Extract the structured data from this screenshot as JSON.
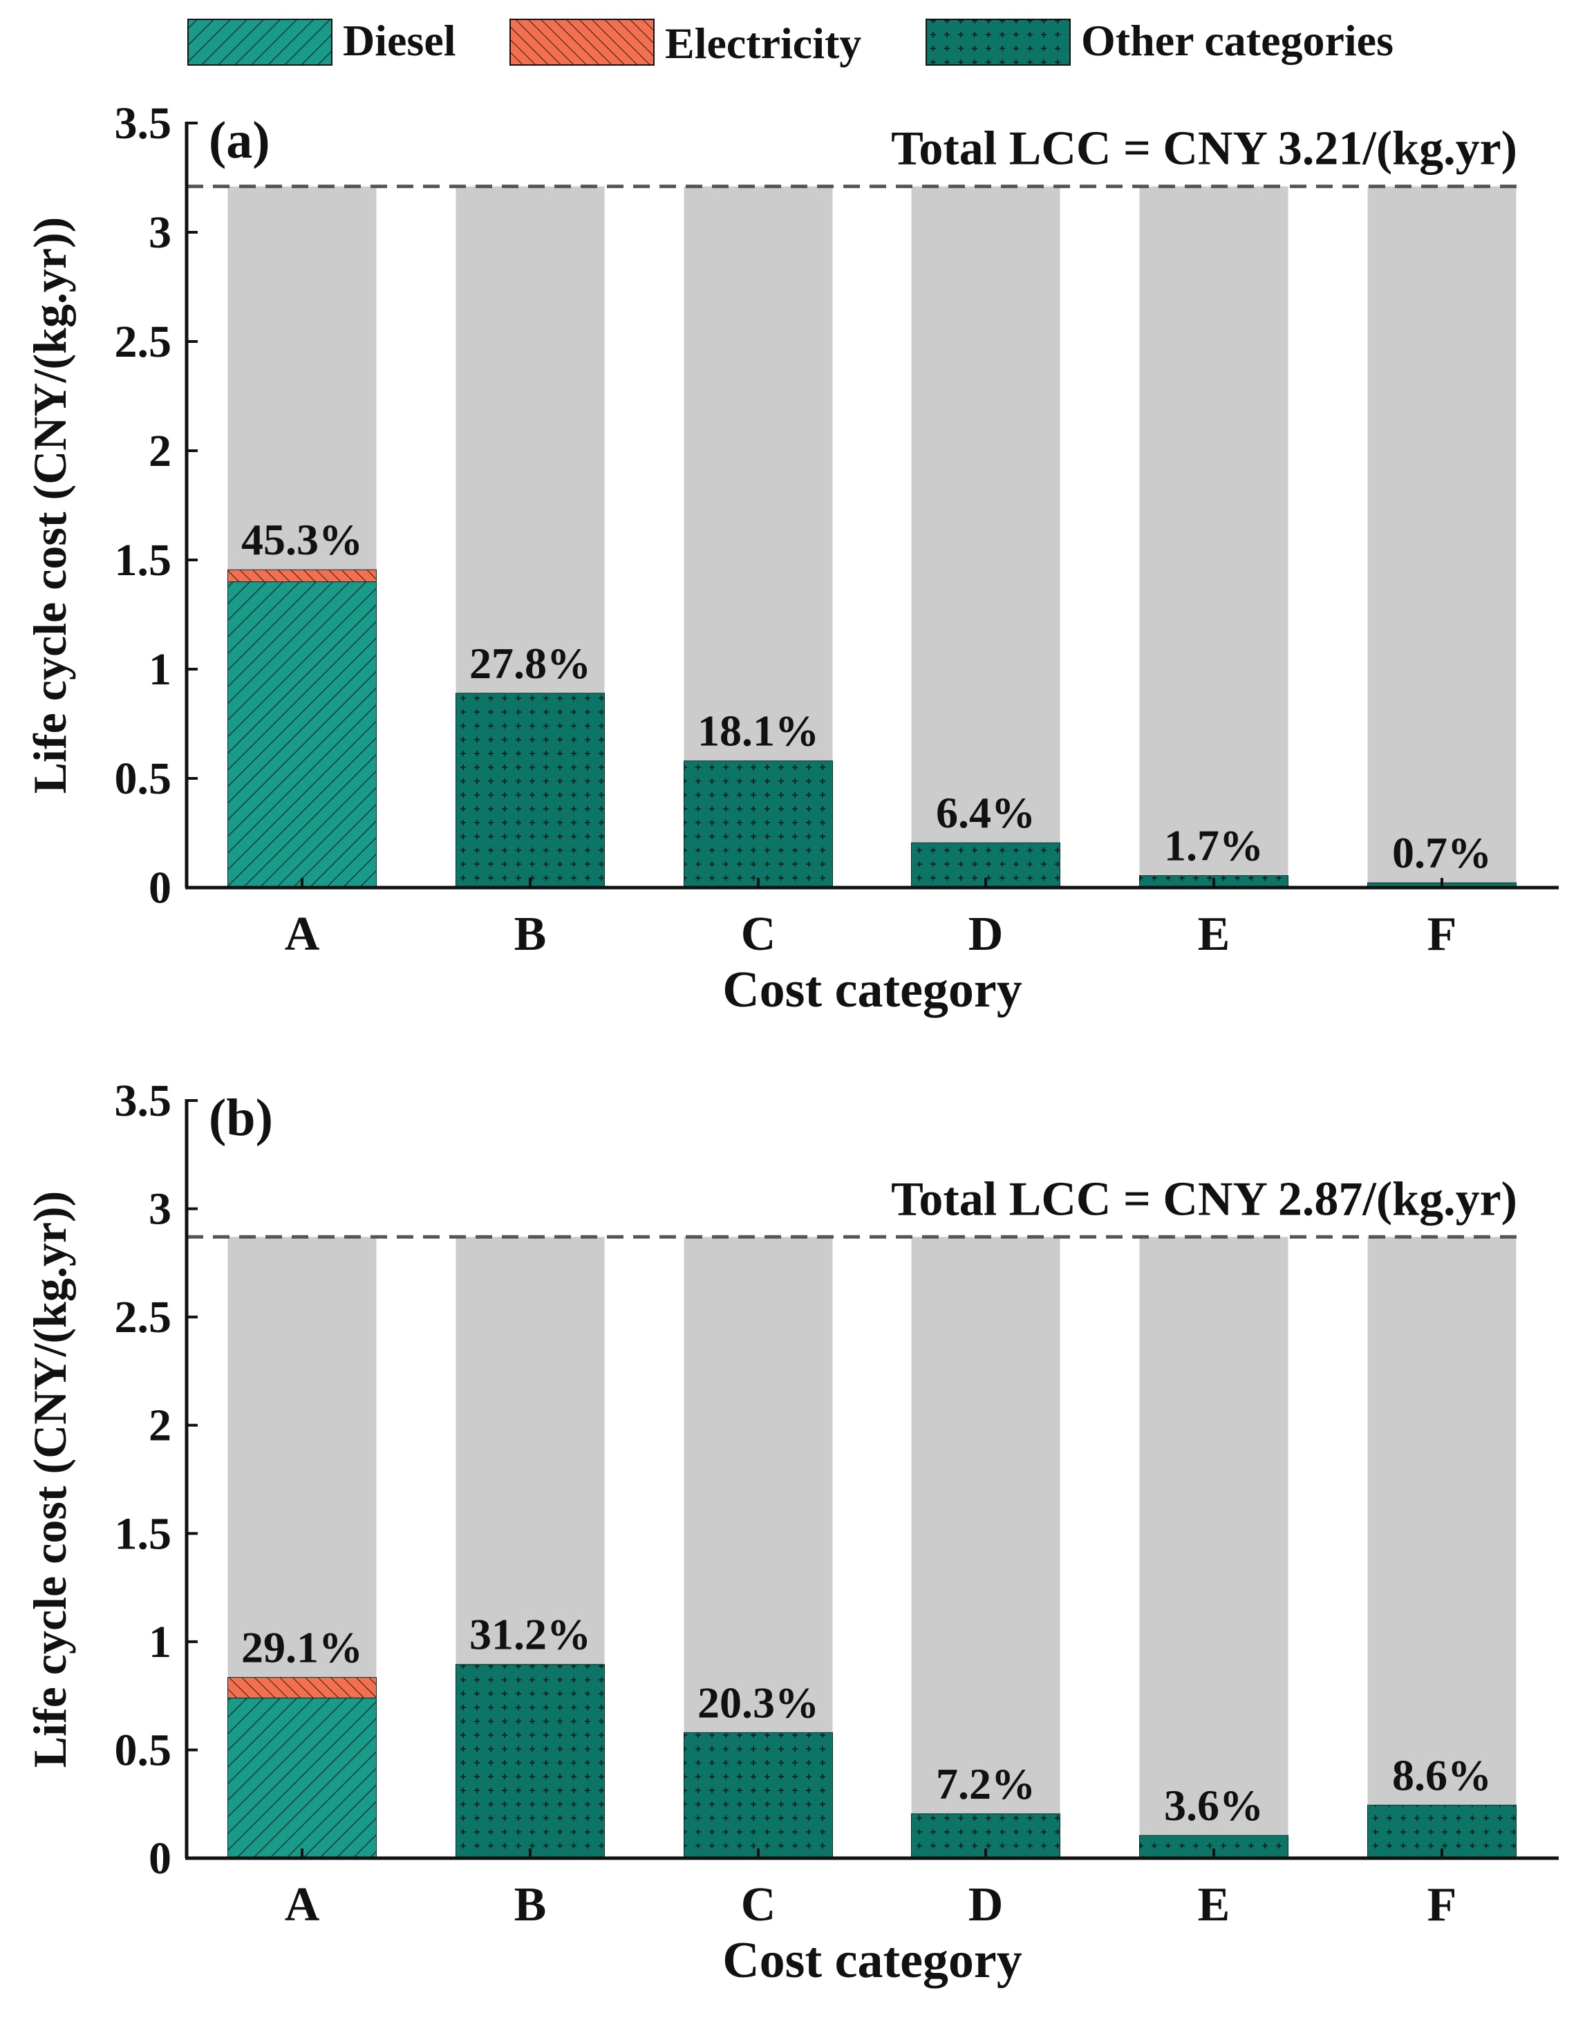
{
  "legend": {
    "items": [
      {
        "name": "Diesel",
        "color": "#1a9a88",
        "pattern": "diesel-hatch"
      },
      {
        "name": "Electricity",
        "color": "#f2704f",
        "pattern": "elec-hatch"
      },
      {
        "name": "Other categories",
        "color": "#0d7468",
        "pattern": "plus-dots"
      }
    ]
  },
  "colors": {
    "background_bar": "#cccccc",
    "diesel": "#1a9a88",
    "electricity": "#f2704f",
    "other": "#0d7468",
    "dashed_line": "#555555"
  },
  "chart_data": [
    {
      "type": "bar",
      "panel_label": "(a)",
      "total_label": "Total LCC = CNY 3.21/(kg.yr)",
      "total": 3.21,
      "xlabel": "Cost category",
      "ylabel": "Life cycle cost (CNY/(kg.yr))",
      "ylim": [
        0,
        3.5
      ],
      "yticks": [
        0,
        0.5,
        1,
        1.5,
        2,
        2.5,
        3,
        3.5
      ],
      "ytick_labels": [
        "0",
        "0.5",
        "1",
        "1.5",
        "2",
        "2.5",
        "3",
        "3.5"
      ],
      "categories": [
        "A",
        "B",
        "C",
        "D",
        "E",
        "F"
      ],
      "series": [
        {
          "name": "Diesel",
          "values": [
            1.4,
            0,
            0,
            0,
            0,
            0
          ]
        },
        {
          "name": "Electricity",
          "values": [
            0.055,
            0,
            0,
            0,
            0,
            0
          ]
        },
        {
          "name": "Other categories",
          "values": [
            0,
            0.89,
            0.58,
            0.205,
            0.055,
            0.022
          ]
        }
      ],
      "percent_labels": [
        "45.3%",
        "27.8%",
        "18.1%",
        "6.4%",
        "1.7%",
        "0.7%"
      ]
    },
    {
      "type": "bar",
      "panel_label": "(b)",
      "total_label": "Total LCC = CNY 2.87/(kg.yr)",
      "total": 2.87,
      "xlabel": "Cost category",
      "ylabel": "Life cycle cost (CNY/(kg.yr))",
      "ylim": [
        0,
        3.5
      ],
      "yticks": [
        0,
        0.5,
        1,
        1.5,
        2,
        2.5,
        3,
        3.5
      ],
      "ytick_labels": [
        "0",
        "0.5",
        "1",
        "1.5",
        "2",
        "2.5",
        "3",
        "3.5"
      ],
      "categories": [
        "A",
        "B",
        "C",
        "D",
        "E",
        "F"
      ],
      "series": [
        {
          "name": "Diesel",
          "values": [
            0.74,
            0,
            0,
            0,
            0,
            0
          ]
        },
        {
          "name": "Electricity",
          "values": [
            0.095,
            0,
            0,
            0,
            0,
            0
          ]
        },
        {
          "name": "Other categories",
          "values": [
            0,
            0.895,
            0.58,
            0.205,
            0.105,
            0.245
          ]
        }
      ],
      "percent_labels": [
        "29.1%",
        "31.2%",
        "20.3%",
        "7.2%",
        "3.6%",
        "8.6%"
      ]
    }
  ]
}
